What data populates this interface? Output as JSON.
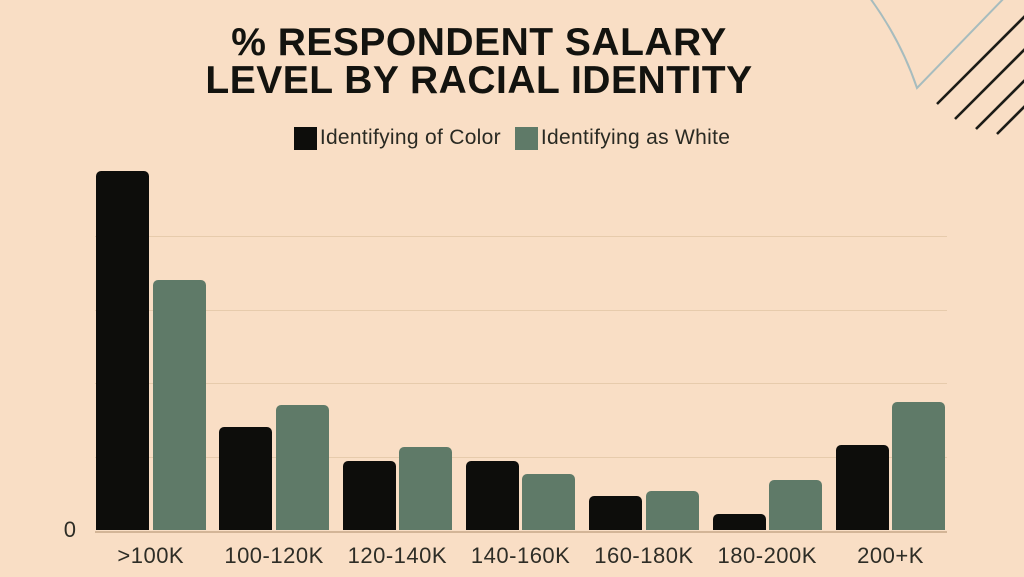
{
  "title": {
    "line1": "% RESPONDENT SALARY",
    "line2": "LEVEL BY RACIAL IDENTITY"
  },
  "legend": [
    {
      "label": "Identifying of Color",
      "color": "#0d0d0b"
    },
    {
      "label": "Identifying as White",
      "color": "#5f7a68"
    }
  ],
  "y_axis": {
    "zero_label": "0"
  },
  "colors": {
    "background": "#f9dec5",
    "series_color_people_of_color": "#0d0d0b",
    "series_color_white": "#5f7a68",
    "decor_stripes": "#1c1c17",
    "decor_leaf": "#a7bcbe"
  },
  "chart_data": {
    "type": "bar",
    "title": "% RESPONDENT SALARY LEVEL BY RACIAL IDENTITY",
    "categories": [
      ">100K",
      "100-120K",
      "120-140K",
      "140-160K",
      "160-180K",
      "180-200K",
      "200+K"
    ],
    "series": [
      {
        "name": "Identifying of Color",
        "color": "#0d0d0b",
        "values": [
          48.9,
          14.0,
          9.4,
          9.4,
          4.7,
          2.3,
          11.6
        ]
      },
      {
        "name": "Identifying as White",
        "color": "#5f7a68",
        "values": [
          34.0,
          17.1,
          11.4,
          7.7,
          5.4,
          6.9,
          17.4
        ]
      }
    ],
    "xlabel": "",
    "ylabel": "",
    "ylim": [
      0,
      52
    ],
    "gridline_step": 10,
    "grid": true,
    "legend_position": "top"
  }
}
